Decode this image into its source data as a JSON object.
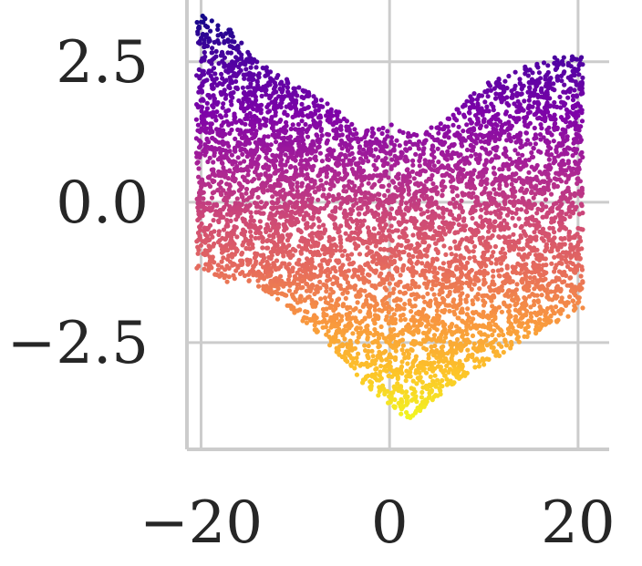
{
  "chart_data": {
    "type": "scatter",
    "title": "",
    "xlabel": "",
    "ylabel": "",
    "xlim": [
      -21.5,
      23.3
    ],
    "ylim": [
      -4.4,
      3.6
    ],
    "x_ticks": [
      -20,
      0,
      20
    ],
    "y_ticks": [
      2.5,
      0.0,
      -2.5
    ],
    "x_tick_labels": [
      "−20",
      "0",
      "20"
    ],
    "y_tick_labels": [
      "2.5",
      "0.0",
      "−2.5"
    ],
    "grid": true,
    "colormap": "plasma",
    "color_by": "y",
    "grid_color": "#cccccc",
    "spine_color": "#cccccc",
    "text_color": "#262626",
    "x_range": [
      -20.5,
      20.5
    ],
    "top_boundary": [
      [
        -20.5,
        3.4
      ],
      [
        -17,
        3.1
      ],
      [
        -14,
        2.5
      ],
      [
        -10,
        2.1
      ],
      [
        -6,
        1.7
      ],
      [
        -3,
        1.3
      ],
      [
        0,
        1.4
      ],
      [
        3,
        1.2
      ],
      [
        6,
        1.5
      ],
      [
        10,
        2.1
      ],
      [
        14,
        2.4
      ],
      [
        18,
        2.6
      ],
      [
        20.5,
        2.6
      ]
    ],
    "bottom_boundary": [
      [
        -20.5,
        -1.2
      ],
      [
        -18,
        -1.4
      ],
      [
        -14,
        -1.5
      ],
      [
        -10,
        -2.0
      ],
      [
        -6,
        -2.6
      ],
      [
        -3,
        -3.2
      ],
      [
        0,
        -3.6
      ],
      [
        2,
        -3.9
      ],
      [
        4,
        -3.6
      ],
      [
        8,
        -3.1
      ],
      [
        12,
        -2.7
      ],
      [
        16,
        -2.3
      ],
      [
        20.5,
        -1.9
      ]
    ],
    "point_count": 6000
  }
}
